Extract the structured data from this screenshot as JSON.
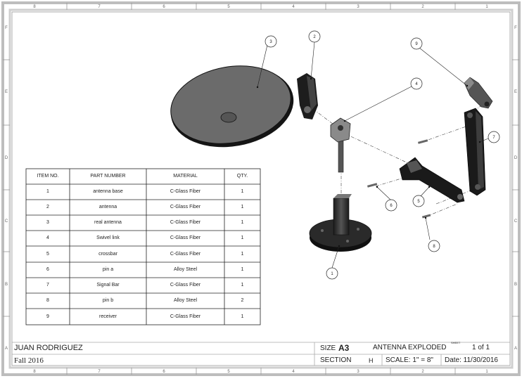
{
  "border": {
    "columns": [
      "8",
      "7",
      "6",
      "5",
      "4",
      "3",
      "2",
      "1"
    ],
    "rows": [
      "F",
      "E",
      "D",
      "C",
      "B",
      "A"
    ]
  },
  "balloons": [
    "1",
    "2",
    "3",
    "4",
    "5",
    "6",
    "7",
    "8",
    "9"
  ],
  "bom": {
    "headers": [
      "ITEM NO.",
      "PART NUMBER",
      "MATERIAL",
      "QTY."
    ],
    "rows": [
      {
        "item": "1",
        "part": "antenna base",
        "material": "C-Glass Fiber",
        "qty": "1"
      },
      {
        "item": "2",
        "part": "antenna",
        "material": "C-Glass Fiber",
        "qty": "1"
      },
      {
        "item": "3",
        "part": "real antenna",
        "material": "C-Glass Fiber",
        "qty": "1"
      },
      {
        "item": "4",
        "part": "Swivel link",
        "material": "C-Glass Fiber",
        "qty": "1"
      },
      {
        "item": "5",
        "part": "crossbar",
        "material": "C-Glass Fiber",
        "qty": "1"
      },
      {
        "item": "6",
        "part": "pin a",
        "material": "Alloy Steel",
        "qty": "1"
      },
      {
        "item": "7",
        "part": "Signal Bar",
        "material": "C-Glass Fiber",
        "qty": "1"
      },
      {
        "item": "8",
        "part": "pin b",
        "material": "Alloy Steel",
        "qty": "2"
      },
      {
        "item": "9",
        "part": "receiver",
        "material": "C-Glass Fiber",
        "qty": "1"
      }
    ]
  },
  "title_block": {
    "name": "JUAN RODRIGUEZ",
    "term": "Fall 2016",
    "size_label": "SIZE",
    "size_value": "A3",
    "title": "ANTENNA EXPLODED",
    "sheet_superscript": "SHEET",
    "sheet": "1 of 1",
    "section_label": "SECTION",
    "section_value": "H",
    "scale": "SCALE: 1\" = 8\"",
    "date": "Date: 11/30/2016"
  }
}
